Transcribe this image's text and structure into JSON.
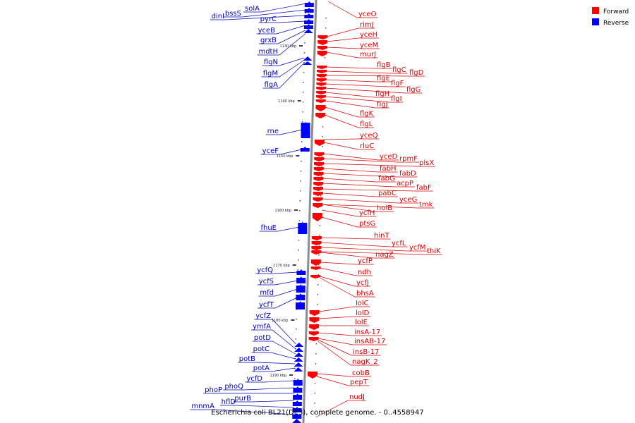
{
  "caption": "Escherichia coli BL21(DE3), complete genome. - 0..4558947",
  "legend": [
    {
      "label": "Forward",
      "color": "#ff0000"
    },
    {
      "label": "Reverse",
      "color": "#0000ff"
    }
  ],
  "colors": {
    "forward": "#ff0000",
    "reverse": "#0000ff",
    "forward_line": "#d40000",
    "reverse_line": "#0000b0",
    "backbone": "#8c8c8c"
  },
  "ticks": [
    "1130 kbp",
    "1140 kbp",
    "1150 kbp",
    "1160 kbp",
    "1170 kbp",
    "1180 kbp",
    "1190 kbp"
  ],
  "forward_genes": [
    "yceO",
    "rimJ",
    "yceH",
    "yceM",
    "murJ",
    "flgB",
    "flgC",
    "flgD",
    "flgE",
    "flgF",
    "flgG",
    "flgH",
    "flgI",
    "flgJ",
    "flgK",
    "flgL",
    "yceQ",
    "rluC",
    "yceD",
    "rpmF",
    "plsX",
    "fabH",
    "fabD",
    "fabG",
    "acpP",
    "fabF",
    "pabC",
    "yceG",
    "tmk",
    "holB",
    "ycfH",
    "ptsG",
    "hinT",
    "ycfL",
    "ycfM",
    "thiK",
    "nagZ",
    "ycfP",
    "ndh",
    "ycfJ",
    "bhsA",
    "lolC",
    "lolD",
    "lolE",
    "insA-17",
    "insAB-17",
    "insB-17",
    "nagK_2",
    "cobB",
    "pepT",
    "nudJ"
  ],
  "reverse_genes": [
    "solA",
    "bssS",
    "dinI",
    "pyrC",
    "yceB",
    "grxB",
    "mdtH",
    "flgN",
    "flgM",
    "flgA",
    "rne",
    "yceF",
    "fhuE",
    "ycfQ",
    "ycfS",
    "mfd",
    "ycfT",
    "ycfZ",
    "ymfA",
    "potD",
    "potC",
    "potB",
    "potA",
    "ycfD",
    "phoQ",
    "phoP",
    "purB",
    "hflD",
    "mnmA"
  ]
}
